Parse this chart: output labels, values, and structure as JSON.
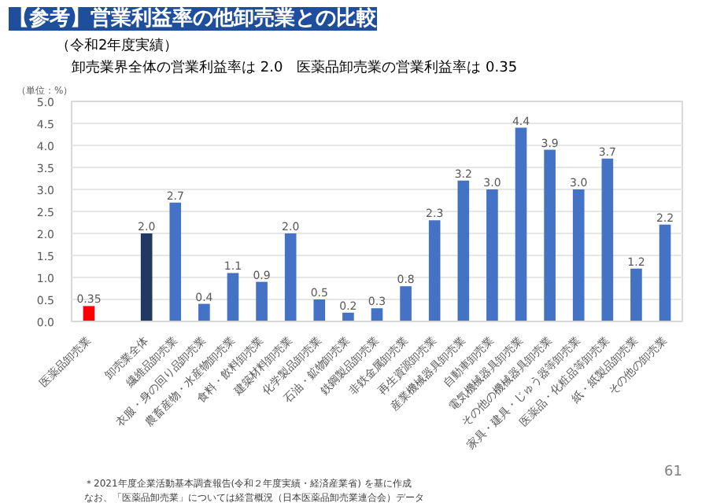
{
  "chart_data": {
    "type": "bar",
    "title": "【参考】営業利益率の他卸売業との比較",
    "subtitle": "（令和2年度実績）",
    "ylabel": "（単位：%）",
    "annotations": [
      "卸売業界全体の営業利益率は 2.0　医薬品卸売業の営業利益率は 0.35",
      "＊2021年度企業活動基本調査報告(令和２年度実績・経済産業省) を基に作成",
      "なお、「医薬品卸売業」については経営概況（日本医薬品卸売業連合会）データ",
      "61"
    ],
    "categories": [
      "医薬品卸売業",
      null,
      "卸売業全体",
      "繊維品卸売業",
      "衣服・身の回り品卸売業",
      "農畜産物・水産物卸売業",
      "食料・飲料卸売業",
      "建築材料卸売業",
      "化学製品卸売業",
      "石油・鉱物卸売業",
      "鉄鋼製品卸売業",
      "非鉄金属卸売業",
      "再生資源卸売業",
      "産業機械器具卸売業",
      "自動車卸売業",
      "電気機械器具卸売業",
      "その他の機械器具卸売業",
      "家具・建具・じゅう器等卸売業",
      "医薬品・化粧品等卸売業",
      "紙・紙製品卸売業",
      "その他の卸売業"
    ],
    "values": [
      0.35,
      null,
      2.0,
      2.7,
      0.4,
      1.1,
      0.9,
      2.0,
      0.5,
      0.2,
      0.3,
      0.8,
      2.3,
      3.2,
      3.0,
      4.4,
      3.9,
      3.0,
      3.7,
      1.2,
      2.2
    ],
    "colors": [
      "#ff0000",
      null,
      "#1f3864",
      "#4472c4",
      "#4472c4",
      "#4472c4",
      "#4472c4",
      "#4472c4",
      "#4472c4",
      "#4472c4",
      "#4472c4",
      "#4472c4",
      "#4472c4",
      "#4472c4",
      "#4472c4",
      "#4472c4",
      "#4472c4",
      "#4472c4",
      "#4472c4",
      "#4472c4",
      "#4472c4"
    ],
    "value_labels": [
      "0.35",
      null,
      "2.0",
      "2.7",
      "0.4",
      "1.1",
      "0.9",
      "2.0",
      "0.5",
      "0.2",
      "0.3",
      "0.8",
      "2.3",
      "3.2",
      "3.0",
      "4.4",
      "3.9",
      "3.0",
      "3.7",
      "1.2",
      "2.2"
    ],
    "ylim": [
      0,
      5
    ],
    "yticks": [
      {
        "value": 0,
        "label": "0.0"
      },
      {
        "value": 0.5,
        "label": "0.5"
      },
      {
        "value": 1,
        "label": "1.0"
      },
      {
        "value": 1.5,
        "label": "1.5"
      },
      {
        "value": 2,
        "label": "2.0"
      },
      {
        "value": 2.5,
        "label": "2.5"
      },
      {
        "value": 3,
        "label": "3.0"
      },
      {
        "value": 3.5,
        "label": "3.5"
      },
      {
        "value": 4,
        "label": "4.0"
      },
      {
        "value": 4.5,
        "label": "4.5"
      },
      {
        "value": 5,
        "label": "5.0"
      }
    ],
    "grid": "y"
  }
}
